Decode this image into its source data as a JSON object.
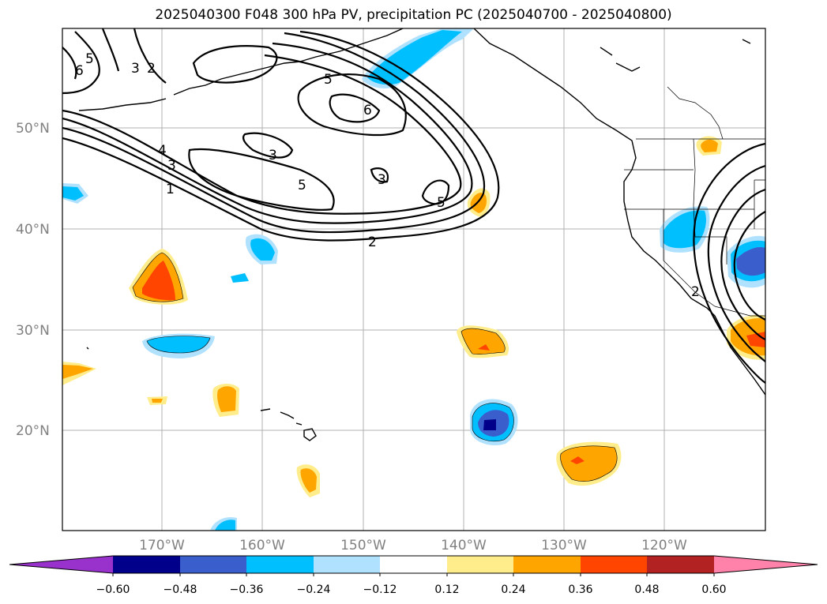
{
  "title": "2025040300 F048 300 hPa PV, precipitation PC (2025040700 - 2025040800)",
  "map": {
    "lat_labels": [
      "50°N",
      "40°N",
      "30°N",
      "20°N"
    ],
    "lon_labels": [
      "170°W",
      "160°W",
      "150°W",
      "140°W",
      "130°W",
      "120°W"
    ],
    "grid": true
  },
  "pv_contour_labels": [
    "5",
    "6",
    "3",
    "2",
    "5",
    "6",
    "3",
    "4",
    "3",
    "1",
    "5",
    "3",
    "5",
    "2",
    "2"
  ],
  "colorbar": {
    "ticks": [
      "−0.60",
      "−0.48",
      "−0.36",
      "−0.24",
      "−0.12",
      "0.12",
      "0.24",
      "0.36",
      "0.48",
      "0.60"
    ],
    "colors": [
      "#9932cc",
      "#00008b",
      "#3a5fcd",
      "#00bfff",
      "#b0e2ff",
      "#ffffff",
      "#ffec8b",
      "#ffa500",
      "#ff4500",
      "#b22222",
      "#ff82ab"
    ]
  }
}
